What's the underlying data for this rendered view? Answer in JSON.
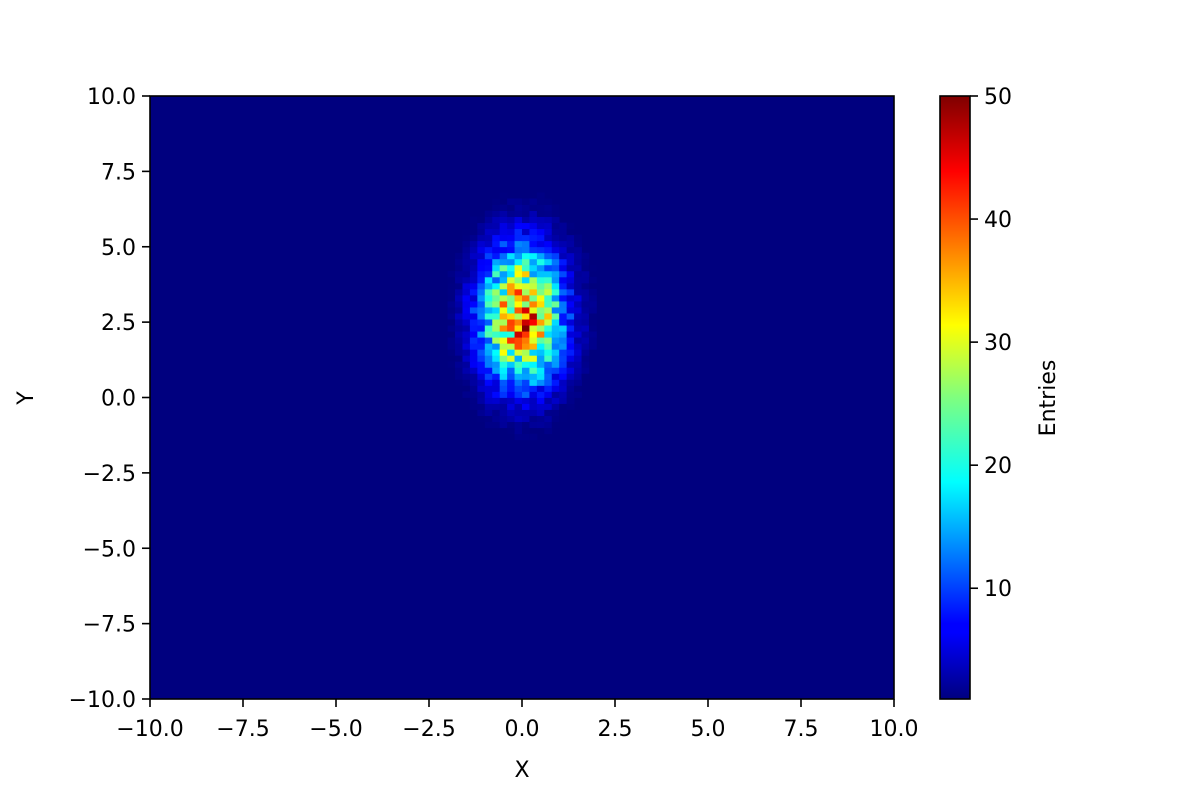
{
  "chart_data": {
    "type": "heatmap",
    "title": "",
    "xlabel": "X",
    "ylabel": "Y",
    "colorbar_label": "Entries",
    "colormap": "jet",
    "background_color": "#00007f",
    "xlim": [
      -10,
      10
    ],
    "ylim": [
      -10,
      10
    ],
    "bins": [
      100,
      100
    ],
    "value_range": [
      1,
      50
    ],
    "x_ticks": [
      "−10.0",
      "−7.5",
      "−5.0",
      "−2.5",
      "0.0",
      "2.5",
      "5.0",
      "7.5",
      "10.0"
    ],
    "y_ticks": [
      "−10.0",
      "−7.5",
      "−5.0",
      "−2.5",
      "0.0",
      "2.5",
      "5.0",
      "7.5",
      "10.0"
    ],
    "colorbar_ticks": [
      "10",
      "20",
      "30",
      "40",
      "50"
    ],
    "distribution": {
      "shape": "2D gaussian",
      "mean": [
        0.0,
        2.7
      ],
      "std": [
        0.75,
        1.5
      ],
      "peak_value": 50
    },
    "grid": false,
    "legend": "none"
  }
}
